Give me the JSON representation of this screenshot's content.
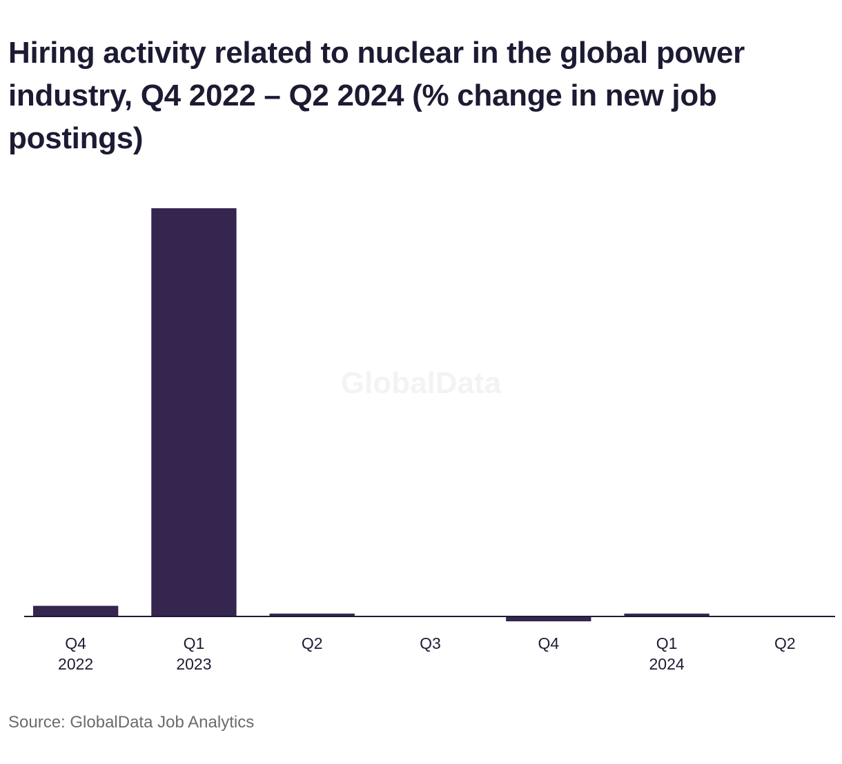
{
  "title": "Hiring activity related to nuclear in the global power industry, Q4 2022 – Q2 2024 (% change in new job postings)",
  "source": "Source: GlobalData Job Analytics",
  "watermark": "GlobalData",
  "colors": {
    "bar": "#352650",
    "axis": "#1c1b33",
    "text": "#1c1b33",
    "source_text": "#6b6b6b",
    "watermark": "#f3f3f5"
  },
  "chart_data": {
    "type": "bar",
    "title": "Hiring activity related to nuclear in the global power industry, Q4 2022 – Q2 2024 (% change in new job postings)",
    "xlabel": "",
    "ylabel": "",
    "categories": [
      [
        "Q4",
        "2022"
      ],
      [
        "Q1",
        "2023"
      ],
      [
        "Q2"
      ],
      [
        "Q3"
      ],
      [
        "Q4"
      ],
      [
        "Q1",
        "2024"
      ],
      [
        "Q2"
      ]
    ],
    "values": [
      2.6,
      100,
      0.7,
      0,
      -1.2,
      0.7,
      0
    ],
    "ylim": [
      -2,
      100
    ],
    "grid": false,
    "legend": "none"
  }
}
